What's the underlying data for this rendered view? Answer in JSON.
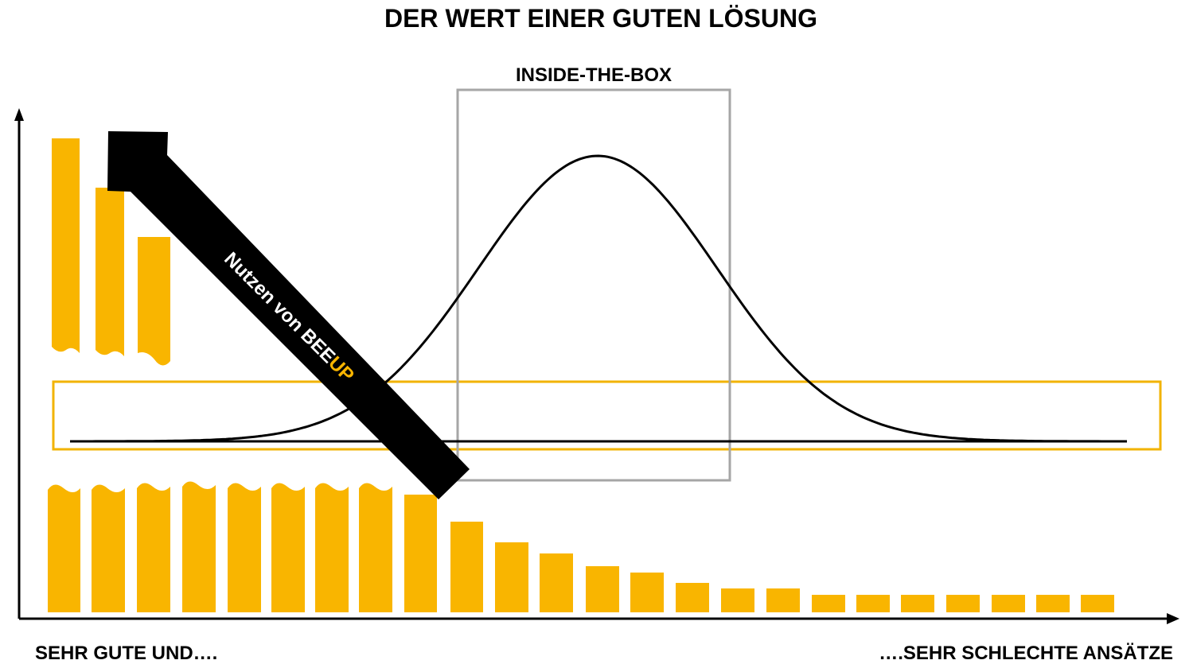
{
  "title": "DER WERT EINER GUTEN LÖSUNG",
  "box_label": "INSIDE-THE-BOX",
  "x_left_label": "SEHR GUTE UND….",
  "x_right_label": "….SEHR SCHLECHTE ANSÄTZE",
  "arrow_label": {
    "prefix": "Nutzen von BEE",
    "highlight": "UP"
  },
  "colors": {
    "bar": "#f9b500",
    "highlight_text": "#f9b500",
    "band_border": "#f2b300",
    "box_border": "#a6a6a6",
    "arrow": "#000000",
    "curve": "#000000",
    "axis": "#000000"
  },
  "icons": {
    "y_axis_head": "arrow-up-icon",
    "x_axis_head": "arrow-right-icon",
    "benefit_arrow": "diagonal-arrow-icon"
  }
}
